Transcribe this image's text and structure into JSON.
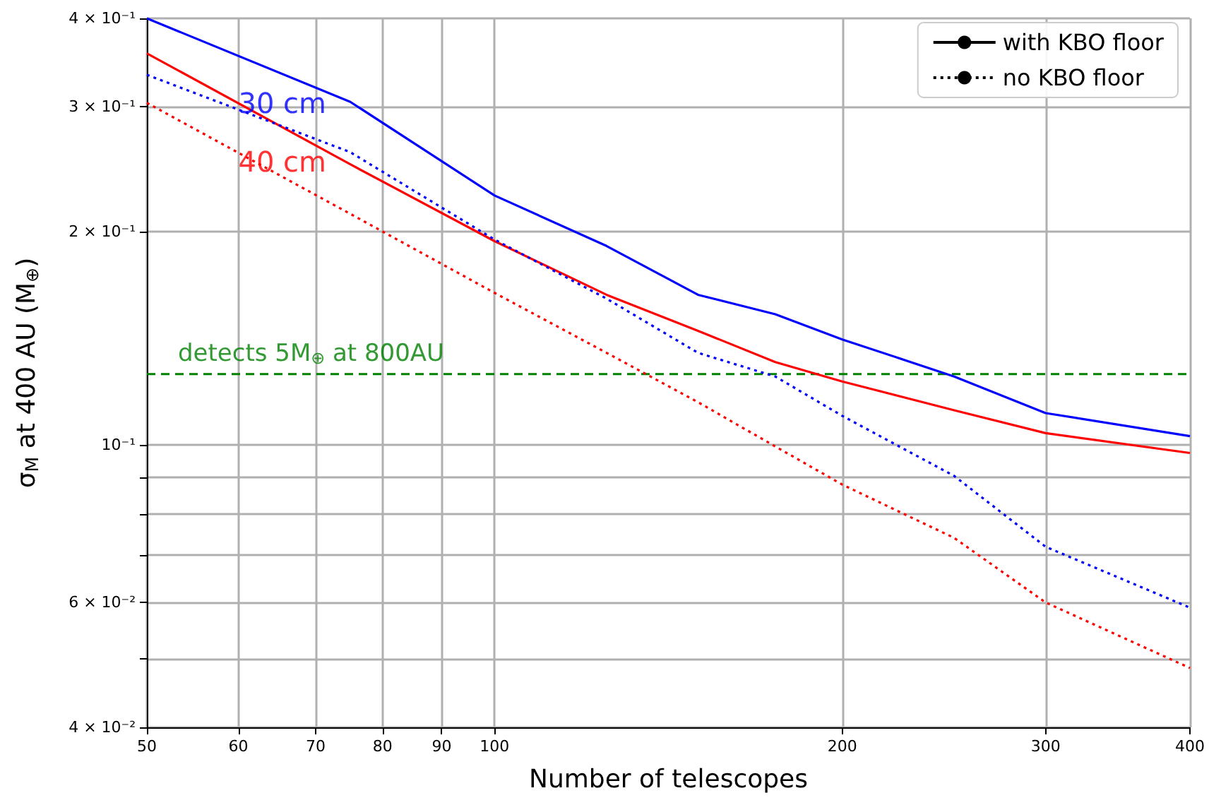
{
  "chart_data": {
    "type": "line",
    "xlabel": "Number of telescopes",
    "ylabel": "σ$_{M}$ at 400 AU (M$_{⊕}$)",
    "log": "xy",
    "grid": true,
    "legend": "top right",
    "marker": "none",
    "xlim": [
      50,
      400
    ],
    "xticks": [
      50,
      60,
      70,
      80,
      90,
      100,
      200,
      300,
      400
    ],
    "ylim": [
      0.04,
      0.4
    ],
    "yticks": [
      {
        "value": 0.04,
        "label": "4 × 10⁻²"
      },
      {
        "value": 0.05,
        "label": null
      },
      {
        "value": 0.06,
        "label": "6 × 10⁻²"
      },
      {
        "value": 0.07,
        "label": null
      },
      {
        "value": 0.08,
        "label": null
      },
      {
        "value": 0.09,
        "label": null
      },
      {
        "value": 0.1,
        "label": "10⁻¹"
      },
      {
        "value": 0.2,
        "label": "2 × 10⁻¹"
      },
      {
        "value": 0.3,
        "label": "3 × 10⁻¹"
      },
      {
        "value": 0.4,
        "label": "4 × 10⁻¹"
      }
    ],
    "x": [
      50,
      75,
      100,
      125,
      150,
      175,
      200,
      250,
      300,
      400
    ],
    "series": [
      {
        "color": "#0000ff",
        "line_style": "solid",
        "values": [
          0.4,
          0.305,
          0.225,
          0.191,
          0.163,
          0.153,
          0.141,
          0.125,
          0.111,
          0.103
        ]
      },
      {
        "color": "#ff0000",
        "line_style": "solid",
        "values": [
          0.357,
          0.249,
          0.194,
          0.163,
          0.145,
          0.131,
          0.123,
          0.112,
          0.104,
          0.0975
        ]
      },
      {
        "color": "#0000ff",
        "line_style": "dotted",
        "values": [
          0.333,
          0.259,
          0.195,
          0.161,
          0.135,
          0.125,
          0.11,
          0.0905,
          0.0719,
          0.059
        ]
      },
      {
        "color": "#ff0000",
        "line_style": "dotted",
        "values": [
          0.304,
          0.212,
          0.164,
          0.135,
          0.115,
          0.0996,
          0.088,
          0.074,
          0.06,
          0.0485
        ]
      },
      {
        "name": "with KBO floor",
        "color": "#000000",
        "line_style": "solid",
        "values": [
          null,
          null,
          null,
          null,
          null,
          null,
          null,
          null,
          null,
          null
        ]
      },
      {
        "name": "no KBO floor",
        "color": "#000000",
        "line_style": "dotted",
        "values": [
          null,
          null,
          null,
          null,
          null,
          null,
          null,
          null,
          null,
          null
        ]
      }
    ],
    "annotations": [
      {
        "text": "30 cm",
        "x": 60,
        "y": 0.304
      },
      {
        "text": "40 cm",
        "x": 60,
        "y": 0.251
      }
    ],
    "ref_lines": [
      {
        "axis": "y",
        "value": 0.126,
        "label": "detects 5M$_{⊕}$ at 800AU",
        "color": "#008000",
        "line_style": "dashed"
      }
    ]
  }
}
